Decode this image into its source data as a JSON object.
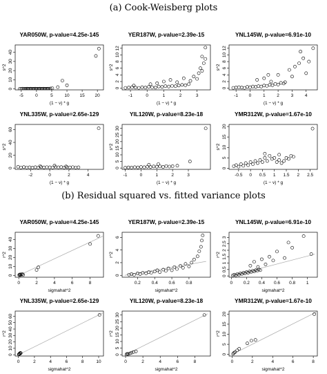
{
  "section_a_title": "(a) Cook-Weisberg plots",
  "section_b_title": "(b) Residual squared vs. fitted variance plots",
  "chart_data": [
    {
      "type": "scatter",
      "section": "a",
      "title": "YAR050W, p-value=4.25e-145",
      "xlabel": "(1 − v) * g",
      "ylabel": "s^2",
      "xlim": [
        -7,
        22
      ],
      "ylim": [
        -1,
        48
      ],
      "xticks": [
        -5,
        0,
        5,
        10,
        15,
        20
      ],
      "yticks": [
        0,
        10,
        20,
        30,
        40
      ],
      "x": [
        -5.5,
        -5,
        -4.6,
        -4.2,
        -3.8,
        -3.5,
        -3.1,
        -2.8,
        -2.5,
        -2.2,
        -1.9,
        -1.6,
        -1.3,
        -1,
        -0.7,
        -0.4,
        -0.1,
        0.2,
        0.5,
        0.8,
        1.1,
        1.4,
        1.7,
        2,
        2.3,
        2.6,
        2.9,
        3.2,
        3.5,
        3.8,
        4.1,
        4.6,
        5.2,
        7,
        8.5,
        10,
        19.5,
        20.5
      ],
      "y": [
        0.2,
        0.1,
        0.3,
        0.1,
        0.2,
        0.1,
        0.3,
        0.1,
        0.2,
        0.1,
        0.3,
        0.2,
        0.1,
        0.2,
        0.1,
        0.3,
        0.2,
        0.1,
        0.2,
        0.1,
        0.3,
        0.1,
        0.2,
        0.1,
        0.3,
        0.2,
        0.1,
        0.2,
        0.1,
        0.3,
        0.2,
        0.5,
        0.8,
        2,
        9,
        4,
        36,
        44
      ]
    },
    {
      "type": "scatter",
      "section": "a",
      "title": "YER187W, p-value=2.39e-15",
      "xlabel": "(1 − v) * g",
      "ylabel": "s^2",
      "xlim": [
        -1.5,
        3.8
      ],
      "ylim": [
        -0.5,
        13
      ],
      "xticks": [
        -1,
        0,
        1,
        2,
        3
      ],
      "yticks": [
        0,
        2,
        4,
        6,
        8,
        10,
        12
      ],
      "x": [
        -1.3,
        -1.1,
        -0.9,
        -0.7,
        -0.5,
        -0.3,
        -0.1,
        0.1,
        0.3,
        0.5,
        0.7,
        0.9,
        1.1,
        1.3,
        1.5,
        1.7,
        1.9,
        2.1,
        2.3,
        2.5,
        -0.8,
        0.2,
        0.6,
        1,
        1.4,
        1.8,
        2.2,
        2.6,
        2.8,
        3,
        3.1,
        3.2,
        3.3,
        3.4,
        3.5,
        3.5,
        3.3
      ],
      "y": [
        0.1,
        0.2,
        0.3,
        0.2,
        0.1,
        0.3,
        0.2,
        0.4,
        0.3,
        0.2,
        0.5,
        0.4,
        0.6,
        0.5,
        0.7,
        0.6,
        0.8,
        1,
        0.9,
        1.2,
        0.8,
        1.2,
        1.5,
        2,
        2.5,
        1.8,
        3,
        2.2,
        3.5,
        2.8,
        4.5,
        6,
        5.2,
        7.5,
        8.8,
        12.2,
        9.5
      ]
    },
    {
      "type": "scatter",
      "section": "a",
      "title": "YNL145W, p-value=6.91e-10",
      "xlabel": "(1 − v) * g",
      "ylabel": "s^2",
      "xlim": [
        -1.5,
        4.8
      ],
      "ylim": [
        -0.5,
        13
      ],
      "xticks": [
        -1,
        0,
        1,
        2,
        3,
        4
      ],
      "yticks": [
        0,
        2,
        4,
        6,
        8,
        10,
        12
      ],
      "x": [
        -1.2,
        -1,
        -0.8,
        -0.6,
        -0.4,
        -0.2,
        0,
        0.2,
        0.4,
        0.6,
        0.8,
        1,
        1.2,
        1.4,
        1.6,
        1.8,
        2,
        2.2,
        2.4,
        0.5,
        1,
        1.5,
        2,
        2.5,
        2.8,
        3,
        3.2,
        3.5,
        3.8,
        4,
        4.2,
        4.5,
        3.6,
        1.3
      ],
      "y": [
        0.1,
        0.2,
        0.3,
        0.2,
        0.1,
        0.4,
        0.3,
        0.5,
        0.4,
        0.6,
        0.5,
        0.8,
        0.7,
        1,
        0.9,
        1.3,
        1.1,
        1.6,
        1.4,
        2.5,
        3,
        2,
        4,
        1.8,
        5.5,
        3.5,
        6.5,
        7.5,
        9,
        4.5,
        8,
        12,
        11,
        4
      ]
    },
    {
      "type": "scatter",
      "section": "a",
      "title": "YNL335W, p-value=2.65e-129",
      "xlabel": "(1 − v) * g",
      "ylabel": "s^2",
      "xlim": [
        -3.6,
        5.6
      ],
      "ylim": [
        -2,
        68
      ],
      "xticks": [
        -2,
        0,
        2,
        4
      ],
      "yticks": [
        0,
        20,
        40,
        60
      ],
      "x": [
        -3.3,
        -3,
        -2.7,
        -2.4,
        -2.1,
        -1.8,
        -1.5,
        -1.2,
        -0.9,
        -0.6,
        -0.3,
        0,
        0.3,
        0.6,
        0.9,
        1.2,
        1.5,
        1.8,
        2.1,
        2.4,
        2.7,
        3,
        -1,
        0.5,
        1.7,
        5.1
      ],
      "y": [
        2,
        1,
        1.5,
        1,
        1.2,
        0.8,
        1.3,
        1,
        1.5,
        1.1,
        1.4,
        1.2,
        1,
        1.6,
        1.2,
        1.5,
        1,
        1.3,
        1.1,
        1.4,
        1,
        1.2,
        3,
        4,
        2.5,
        62
      ]
    },
    {
      "type": "scatter",
      "section": "a",
      "title": "YIL120W, p-value=8.23e-18",
      "xlabel": "(1 − v) * g",
      "ylabel": "s^2",
      "xlim": [
        -1.2,
        4.4
      ],
      "ylim": [
        -1,
        33
      ],
      "xticks": [
        -1,
        0,
        1,
        2,
        3
      ],
      "yticks": [
        0,
        5,
        10,
        15,
        20,
        25,
        30
      ],
      "x": [
        -1,
        -0.8,
        -0.6,
        -0.4,
        -0.2,
        0,
        0.2,
        0.4,
        0.6,
        0.8,
        1,
        1.2,
        1.4,
        1.6,
        1.8,
        2,
        2.3,
        0.5,
        1.1,
        3.1,
        4.1
      ],
      "y": [
        0.3,
        0.5,
        0.4,
        0.6,
        0.5,
        0.8,
        0.6,
        1,
        0.8,
        1.2,
        1,
        1.3,
        0.9,
        1.5,
        1.1,
        1.4,
        1.8,
        2.5,
        3,
        5,
        30
      ]
    },
    {
      "type": "scatter",
      "section": "a",
      "title": "YMR312W, p-value=1.67e-10",
      "xlabel": "(1 − v) * g",
      "ylabel": "s^2",
      "xlim": [
        -0.9,
        2.8
      ],
      "ylim": [
        -0.5,
        21
      ],
      "xticks": [
        -0.5,
        0,
        0.5,
        1,
        1.5,
        2,
        2.5
      ],
      "yticks": [
        0,
        5,
        10,
        15,
        20
      ],
      "x": [
        -0.7,
        -0.6,
        -0.5,
        -0.4,
        -0.3,
        -0.2,
        -0.1,
        0,
        0.1,
        0.2,
        0.3,
        0.4,
        0.5,
        0.6,
        0.7,
        0.8,
        0.9,
        1,
        1.1,
        1.2,
        1.3,
        1.4,
        1.5,
        1.6,
        1.7,
        1.8,
        0.6,
        1.2,
        2.6
      ],
      "y": [
        1,
        1.5,
        0.8,
        2,
        1.2,
        2.5,
        1.5,
        3,
        2,
        3.5,
        2.5,
        4,
        3,
        5,
        3.5,
        6,
        4.5,
        5,
        3,
        4,
        2.5,
        3.5,
        5,
        4.5,
        6,
        5.5,
        7,
        6.5,
        19
      ]
    },
    {
      "type": "scatter",
      "section": "b",
      "title": "YAR050W, p-value=4.25e-145",
      "xlabel": "sigmahat^2",
      "ylabel": "r^2",
      "xlim": [
        -0.4,
        9.5
      ],
      "ylim": [
        -2,
        48
      ],
      "xticks": [
        0,
        2,
        4,
        6,
        8
      ],
      "yticks": [
        0,
        10,
        20,
        30,
        40
      ],
      "x": [
        0.05,
        0.1,
        0.15,
        0.2,
        0.3,
        0.4,
        0.5,
        2,
        2.2,
        8,
        8.9
      ],
      "y": [
        0.5,
        1,
        0.3,
        1.2,
        0.8,
        1.5,
        0.6,
        6,
        9,
        35,
        44
      ],
      "fit_line": {
        "x": [
          0,
          9.5
        ],
        "y": [
          0,
          44
        ]
      }
    },
    {
      "type": "scatter",
      "section": "b",
      "title": "YER187W, p-value=2.39e-15",
      "xlabel": "sigmahat^2",
      "ylabel": "r^2",
      "xlim": [
        0.02,
        1.05
      ],
      "ylim": [
        -0.3,
        6.8
      ],
      "xticks": [
        0.2,
        0.4,
        0.6,
        0.8
      ],
      "yticks": [
        0,
        2,
        4,
        6
      ],
      "x": [
        0.1,
        0.13,
        0.16,
        0.2,
        0.23,
        0.26,
        0.3,
        0.33,
        0.36,
        0.4,
        0.43,
        0.46,
        0.5,
        0.53,
        0.56,
        0.6,
        0.63,
        0.66,
        0.7,
        0.73,
        0.76,
        0.8,
        0.83,
        0.86,
        0.9,
        0.92,
        0.94,
        0.95,
        0.96
      ],
      "y": [
        0.1,
        0.2,
        0.1,
        0.3,
        0.2,
        0.4,
        0.3,
        0.5,
        0.4,
        0.6,
        0.8,
        0.5,
        0.9,
        0.7,
        1.1,
        0.8,
        1.3,
        1,
        1.5,
        1.2,
        1.8,
        1.4,
        2,
        2.5,
        3,
        3.8,
        4.5,
        5.5,
        6.3
      ],
      "fit_line": {
        "x": [
          0.05,
          1
        ],
        "y": [
          0,
          2.2
        ]
      }
    },
    {
      "type": "scatter",
      "section": "b",
      "title": "YNL145W, p-value=6.91e-10",
      "xlabel": "sigmahat^2",
      "ylabel": "r^2",
      "xlim": [
        -0.03,
        1.13
      ],
      "ylim": [
        -0.1,
        3.4
      ],
      "xticks": [
        0,
        0.2,
        0.4,
        0.6,
        0.8,
        1
      ],
      "yticks": [
        0,
        0.5,
        1,
        1.5,
        2,
        2.5,
        3
      ],
      "x": [
        0.02,
        0.04,
        0.06,
        0.08,
        0.1,
        0.12,
        0.14,
        0.16,
        0.18,
        0.2,
        0.22,
        0.24,
        0.26,
        0.28,
        0.3,
        0.32,
        0.34,
        0.36,
        0.38,
        0.25,
        0.3,
        0.35,
        0.4,
        0.45,
        0.5,
        0.55,
        0.6,
        0.7,
        0.75,
        0.8,
        0.95,
        1.05
      ],
      "y": [
        0.05,
        0.1,
        0.05,
        0.15,
        0.1,
        0.2,
        0.15,
        0.25,
        0.2,
        0.3,
        0.25,
        0.35,
        0.3,
        0.4,
        0.35,
        0.45,
        0.4,
        0.5,
        0.45,
        0.8,
        1.1,
        0.7,
        1.3,
        0.9,
        1.5,
        1.2,
        1.9,
        1.4,
        2.6,
        2.2,
        3.1,
        1.7
      ],
      "fit_line": {
        "x": [
          0,
          1.1
        ],
        "y": [
          0,
          1.7
        ]
      }
    },
    {
      "type": "scatter",
      "section": "b",
      "title": "YNL335W, p-value=2.65e-129",
      "xlabel": "sigmahat^2",
      "ylabel": "r^2",
      "xlim": [
        -0.4,
        10.6
      ],
      "ylim": [
        -2,
        68
      ],
      "xticks": [
        0,
        2,
        4,
        6,
        8,
        10
      ],
      "yticks": [
        0,
        10,
        20,
        30,
        40,
        50,
        60
      ],
      "x": [
        0.05,
        0.1,
        0.15,
        0.2,
        0.25,
        0.3,
        10.1
      ],
      "y": [
        0.5,
        1,
        2,
        1.5,
        3,
        2.5,
        62
      ],
      "fit_line": {
        "x": [
          0,
          10.5
        ],
        "y": [
          0,
          65
        ]
      }
    },
    {
      "type": "scatter",
      "section": "b",
      "title": "YIL120W, p-value=8.23e-18",
      "xlabel": "sigmahat^2",
      "ylabel": "r^2",
      "xlim": [
        -0.4,
        9.8
      ],
      "ylim": [
        -1,
        33
      ],
      "xticks": [
        0,
        2,
        4,
        6,
        8
      ],
      "yticks": [
        0,
        5,
        10,
        15,
        20,
        25,
        30
      ],
      "x": [
        0.1,
        0.2,
        0.3,
        0.5,
        0.7,
        0.9,
        1.2,
        9.1
      ],
      "y": [
        0.3,
        0.6,
        0.5,
        1,
        1.5,
        2,
        2.5,
        30
      ],
      "fit_line": {
        "x": [
          0,
          9.5
        ],
        "y": [
          0,
          31
        ]
      }
    },
    {
      "type": "scatter",
      "section": "b",
      "title": "YMR312W, p-value=1.67e-10",
      "xlabel": "sigmahat^2",
      "ylabel": "r^2",
      "xlim": [
        -0.3,
        8.4
      ],
      "ylim": [
        -0.8,
        21.5
      ],
      "xticks": [
        0,
        2,
        4,
        6,
        8
      ],
      "yticks": [
        0,
        5,
        10,
        15,
        20
      ],
      "x": [
        0.1,
        0.2,
        0.3,
        0.5,
        0.7,
        1.5,
        1.9,
        2.3,
        8.1
      ],
      "y": [
        0.3,
        0.8,
        1.2,
        2,
        2.8,
        5.5,
        6.8,
        7.2,
        20
      ],
      "fit_line": {
        "x": [
          0,
          8.3
        ],
        "y": [
          0,
          21
        ]
      }
    }
  ]
}
